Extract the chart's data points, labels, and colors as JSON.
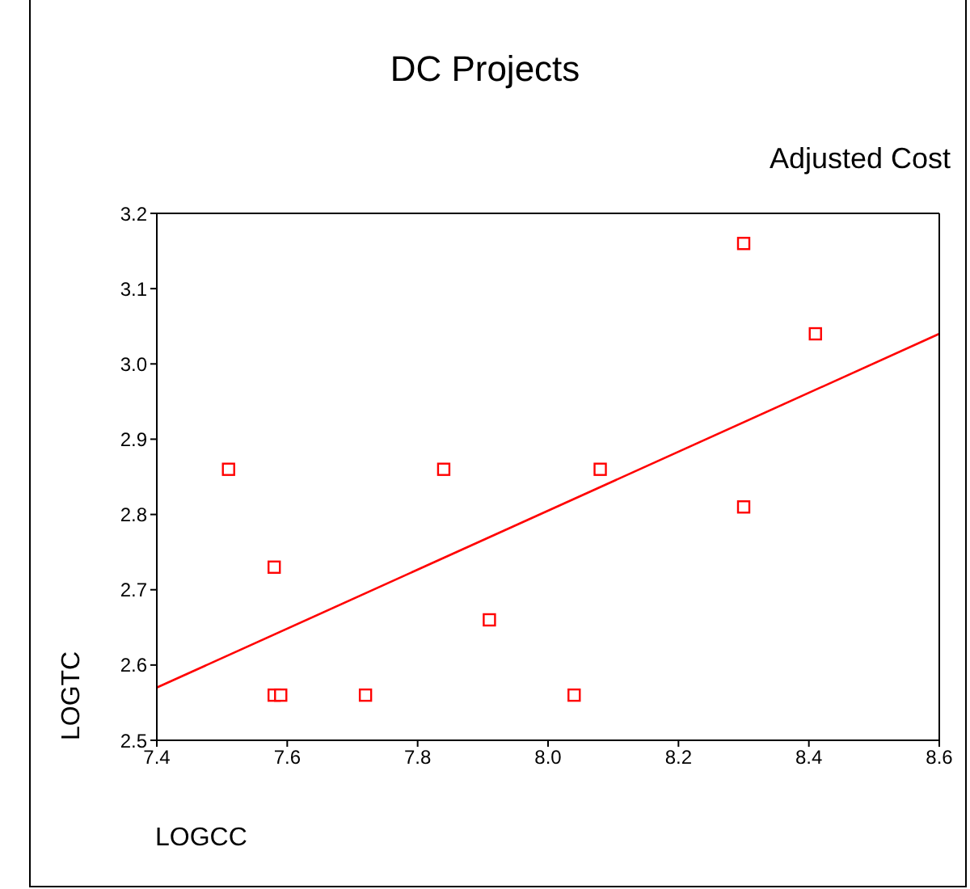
{
  "chart_data": {
    "type": "scatter",
    "title": "DC Projects",
    "subtitle": "Adjusted Cost",
    "xlabel": "LOGCC",
    "ylabel": "LOGTC",
    "xlim": [
      7.4,
      8.6
    ],
    "xticks": [
      7.4,
      7.6,
      7.8,
      {
        "value": 8,
        "label": "8.0"
      },
      8.2,
      8.4,
      8.6
    ],
    "ylim": [
      2.5,
      3.2
    ],
    "yticks": [
      2.5,
      2.6,
      2.7,
      2.8,
      2.9,
      {
        "value": 3,
        "label": "3.0"
      },
      3.1,
      3.2
    ],
    "marker": "square",
    "series": [
      {
        "color": "#ff0000",
        "x": [
          7.51,
          7.58,
          7.58,
          7.59,
          7.72,
          7.84,
          7.91,
          8.04,
          8.08,
          8.3,
          8.3,
          8.41
        ],
        "values": [
          2.86,
          2.73,
          2.56,
          2.56,
          2.56,
          2.86,
          2.66,
          2.56,
          2.86,
          3.16,
          2.81,
          3.04
        ]
      },
      {
        "type": "line",
        "color": "#ff0000",
        "marker": "none",
        "x": [
          7.4,
          8.6
        ],
        "values": [
          2.57,
          3.04
        ]
      }
    ]
  }
}
